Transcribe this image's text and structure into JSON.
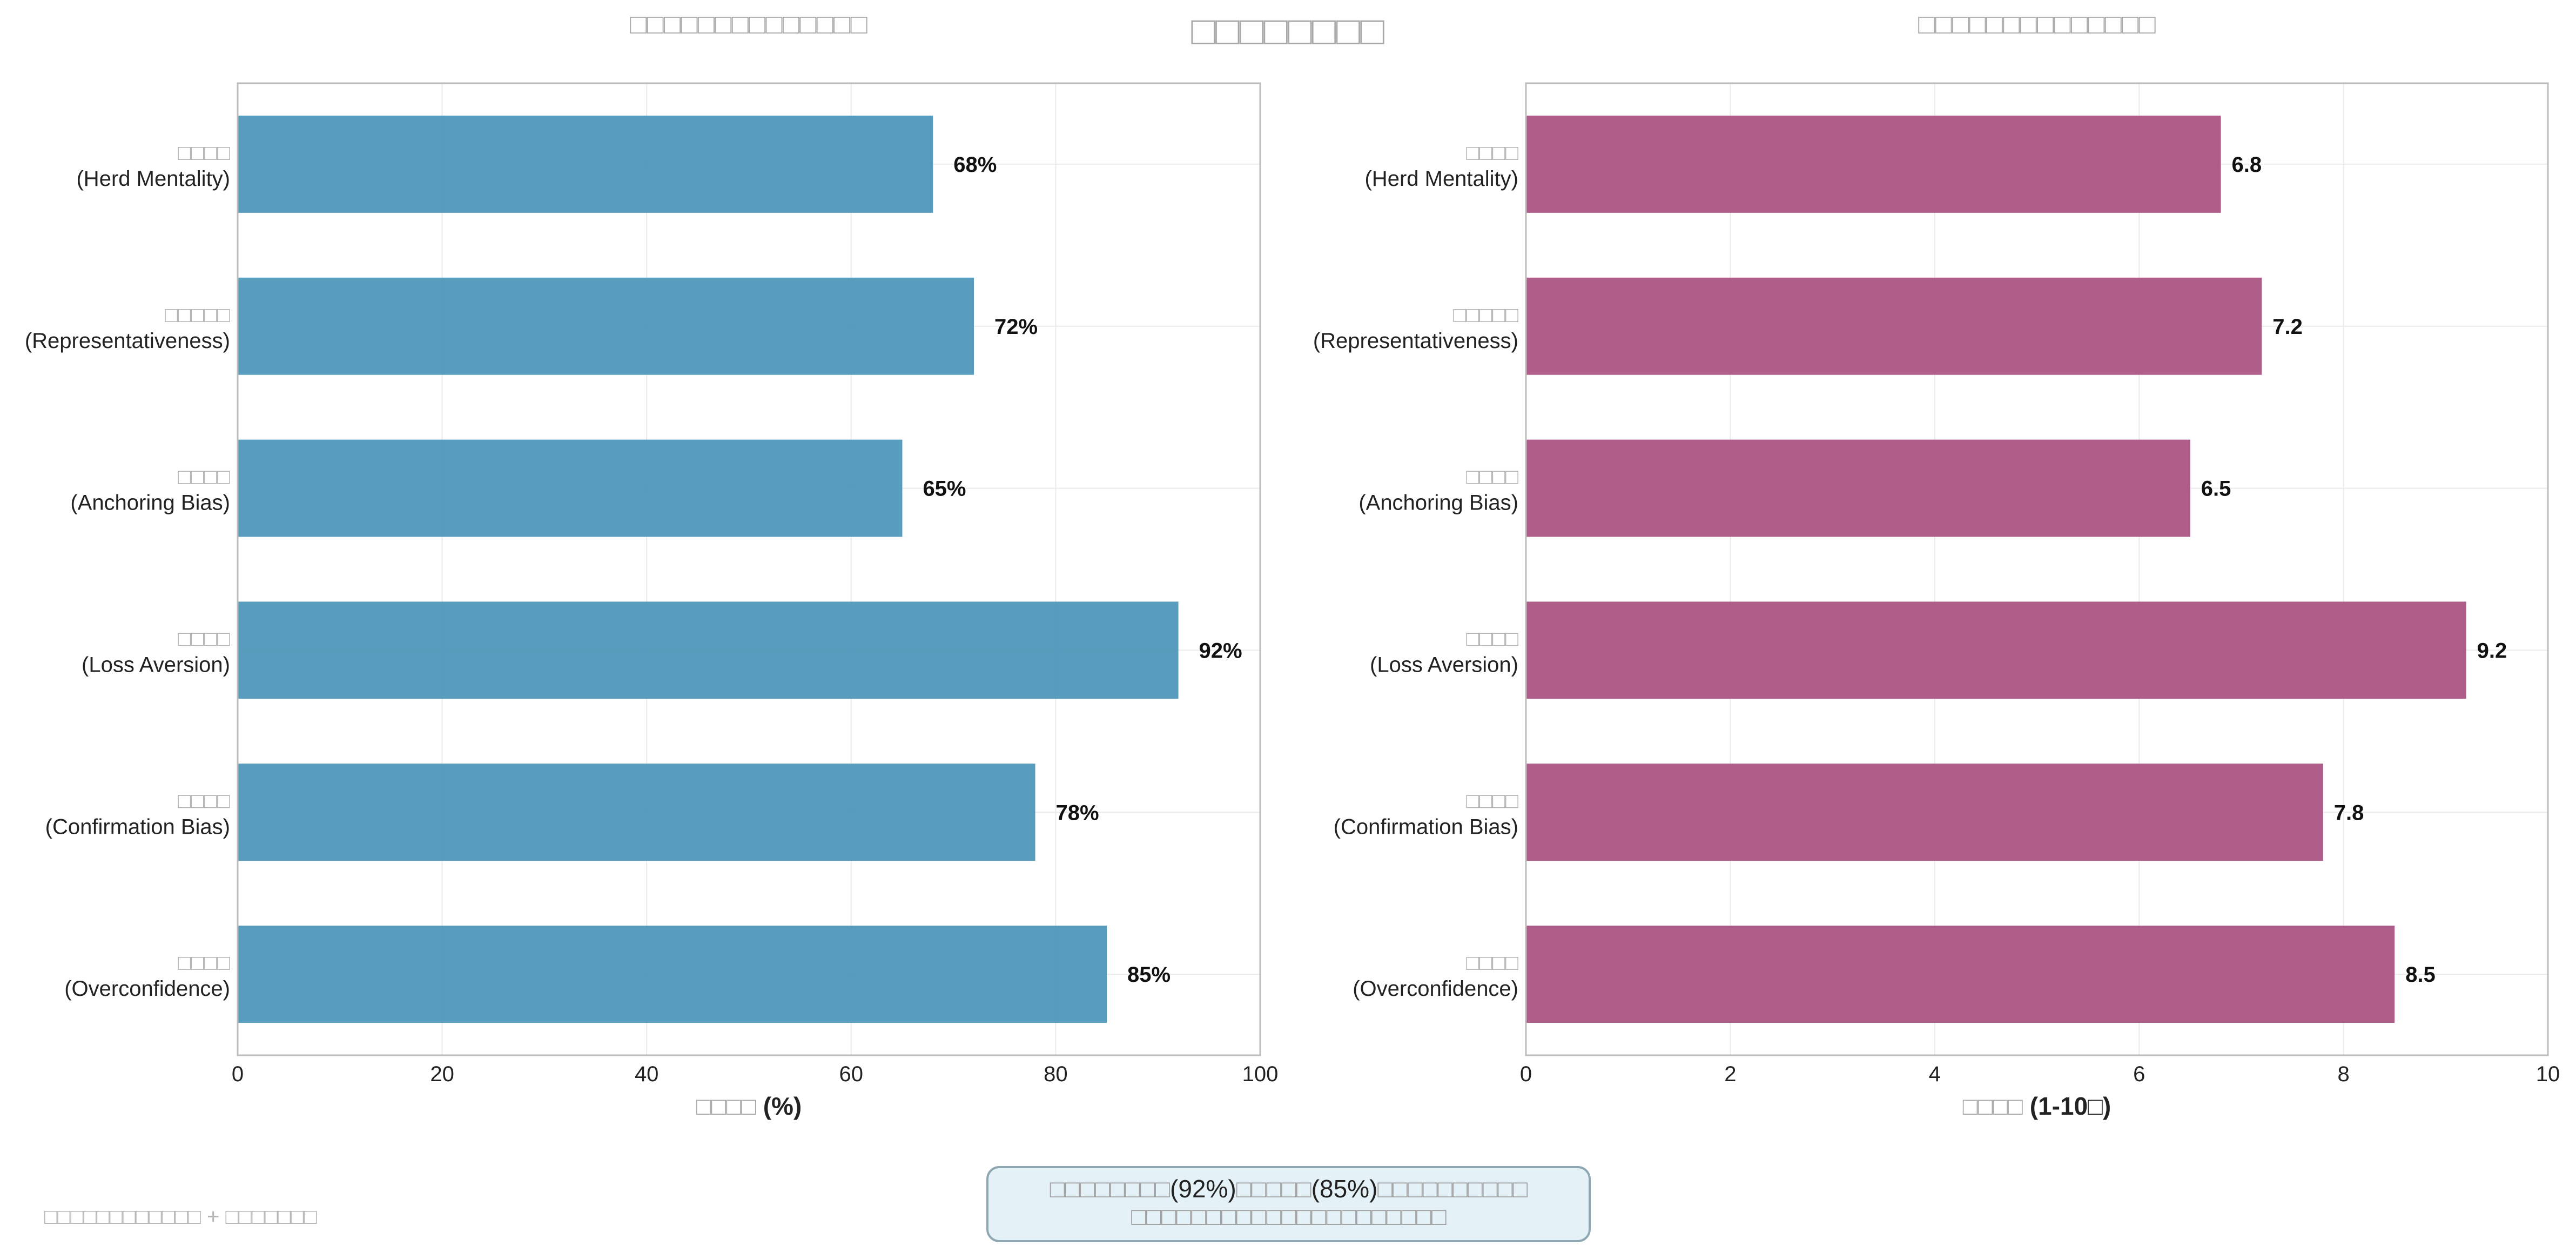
{
  "page": {
    "main_title": "□□□□□□□□",
    "footnote": "□□□□□□□□□□□□ + □□□□□□□",
    "note": {
      "line1": [
        {
          "text": "□□□□□□□□",
          "tone": "gray"
        },
        {
          "text": "(92%)",
          "tone": "dark"
        },
        {
          "text": "□□□□□",
          "tone": "gray"
        },
        {
          "text": "(85%)",
          "tone": "dark"
        },
        {
          "text": "□□□□□□□□□□",
          "tone": "gray"
        }
      ],
      "line2": "□□□□□□□□□□□□□□□□□□□□□"
    }
  },
  "colors": {
    "left_bar": "#4a95b7",
    "right_bar": "#a84f7f",
    "note_fill": "#e4f1f6",
    "note_border": "#8ea7b3"
  },
  "chart_data": [
    {
      "type": "bar",
      "orientation": "horizontal",
      "title": "□□□□□□□□□□□□□□",
      "categories": [
        {
          "zh": "□□□□",
          "en": "(Herd Mentality)"
        },
        {
          "zh": "□□□□□",
          "en": "(Representativeness)"
        },
        {
          "zh": "□□□□",
          "en": "(Anchoring Bias)"
        },
        {
          "zh": "□□□□",
          "en": "(Loss Aversion)"
        },
        {
          "zh": "□□□□",
          "en": "(Confirmation Bias)"
        },
        {
          "zh": "□□□□",
          "en": "(Overconfidence)"
        }
      ],
      "values": [
        68,
        72,
        65,
        92,
        78,
        85
      ],
      "value_labels": [
        "68%",
        "72%",
        "65%",
        "92%",
        "78%",
        "85%"
      ],
      "xlabel_zh": "□□□□",
      "xlabel_unit": "(%)",
      "xlim": [
        0,
        100
      ],
      "xticks": [
        0,
        20,
        40,
        60,
        80,
        100
      ],
      "grid": true
    },
    {
      "type": "bar",
      "orientation": "horizontal",
      "title": "□□□□□□□□□□□□□□",
      "categories": [
        {
          "zh": "□□□□",
          "en": "(Herd Mentality)"
        },
        {
          "zh": "□□□□□",
          "en": "(Representativeness)"
        },
        {
          "zh": "□□□□",
          "en": "(Anchoring Bias)"
        },
        {
          "zh": "□□□□",
          "en": "(Loss Aversion)"
        },
        {
          "zh": "□□□□",
          "en": "(Confirmation Bias)"
        },
        {
          "zh": "□□□□",
          "en": "(Overconfidence)"
        }
      ],
      "values": [
        6.8,
        7.2,
        6.5,
        9.2,
        7.8,
        8.5
      ],
      "value_labels": [
        "6.8",
        "7.2",
        "6.5",
        "9.2",
        "7.8",
        "8.5"
      ],
      "xlabel_zh": "□□□□",
      "xlabel_unit": "(1-10□)",
      "xlim": [
        0,
        10
      ],
      "xticks": [
        0,
        2,
        4,
        6,
        8,
        10
      ],
      "grid": true
    }
  ]
}
